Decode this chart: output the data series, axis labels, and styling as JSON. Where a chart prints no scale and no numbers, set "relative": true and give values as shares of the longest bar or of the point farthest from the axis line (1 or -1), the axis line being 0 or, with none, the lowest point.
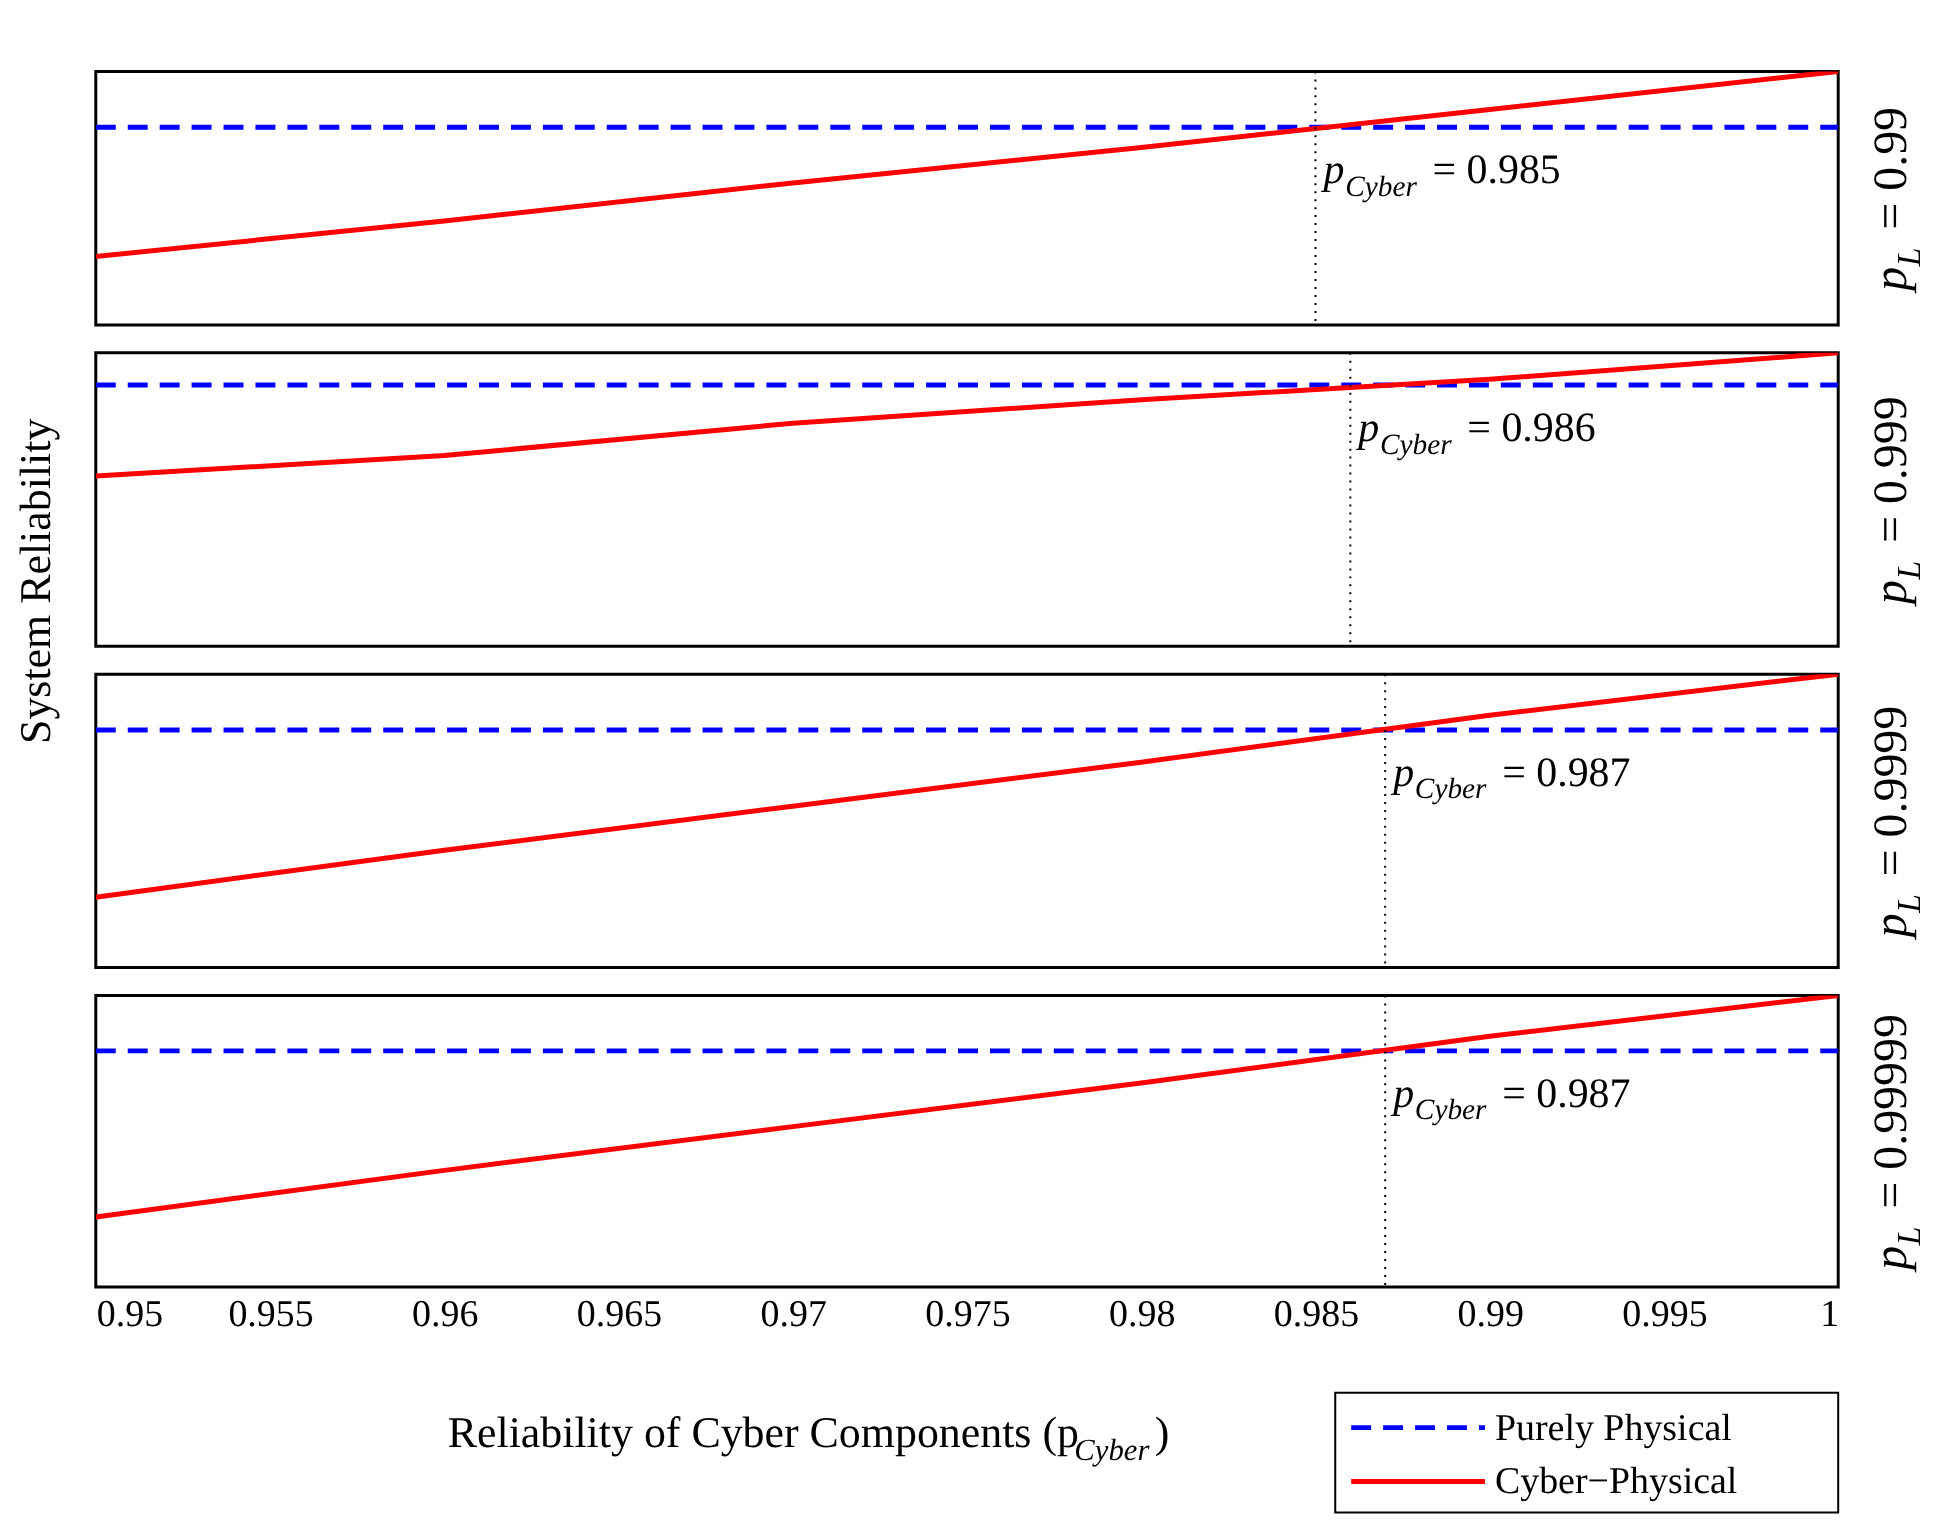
{
  "chart_data": [
    {
      "type": "line",
      "ylabel": "System Reliability",
      "y2label": "p$_{L}$ = 0.99",
      "relative": true,
      "tick_labels": false,
      "grid": false,
      "legend": false,
      "xlim": [
        0.95,
        1
      ],
      "xticks": [
        0.95,
        0.955,
        0.96,
        0.965,
        0.97,
        0.975,
        0.98,
        0.985,
        0.99,
        0.995,
        1
      ],
      "series": [
        {
          "color": "#0000ff",
          "line_style": "dashed",
          "x": [
            0.95,
            1
          ],
          "values": [
            0.78,
            0.78
          ]
        },
        {
          "color": "#ff0000",
          "line_style": "solid",
          "x": [
            0.95,
            0.96,
            0.97,
            0.98,
            0.99,
            1
          ],
          "values": [
            0.27,
            0.41,
            0.56,
            0.7,
            0.85,
            1.0
          ]
        }
      ],
      "ref_lines": [
        {
          "axis": "x",
          "value": 0.985,
          "label": "p$_{Cyber}$ = 0.985",
          "color": "#000000",
          "line_style": "dotted"
        }
      ]
    },
    {
      "type": "line",
      "y2label": "p$_{L}$ = 0.999",
      "relative": true,
      "tick_labels": false,
      "grid": false,
      "legend": false,
      "xlim": [
        0.95,
        1
      ],
      "xticks": [
        0.95,
        0.955,
        0.96,
        0.965,
        0.97,
        0.975,
        0.98,
        0.985,
        0.99,
        0.995,
        1
      ],
      "series": [
        {
          "color": "#0000ff",
          "line_style": "dashed",
          "x": [
            0.95,
            1
          ],
          "values": [
            0.89,
            0.89
          ]
        },
        {
          "color": "#ff0000",
          "line_style": "solid",
          "x": [
            0.95,
            0.96,
            0.97,
            0.98,
            0.99,
            1
          ],
          "values": [
            0.58,
            0.65,
            0.76,
            0.84,
            0.91,
            1.0
          ]
        }
      ],
      "ref_lines": [
        {
          "axis": "x",
          "value": 0.986,
          "label": "p$_{Cyber}$ = 0.986",
          "color": "#000000",
          "line_style": "dotted"
        }
      ]
    },
    {
      "type": "line",
      "y2label": "p$_{L}$ = 0.9999",
      "relative": true,
      "tick_labels": false,
      "grid": false,
      "legend": false,
      "xlim": [
        0.95,
        1
      ],
      "xticks": [
        0.95,
        0.955,
        0.96,
        0.965,
        0.97,
        0.975,
        0.98,
        0.985,
        0.99,
        0.995,
        1
      ],
      "series": [
        {
          "color": "#0000ff",
          "line_style": "dashed",
          "x": [
            0.95,
            1
          ],
          "values": [
            0.81,
            0.81
          ]
        },
        {
          "color": "#ff0000",
          "line_style": "solid",
          "x": [
            0.95,
            0.96,
            0.97,
            0.98,
            0.99,
            1
          ],
          "values": [
            0.24,
            0.4,
            0.55,
            0.7,
            0.86,
            1.0
          ]
        }
      ],
      "ref_lines": [
        {
          "axis": "x",
          "value": 0.987,
          "label": "p$_{Cyber}$ = 0.987",
          "color": "#000000",
          "line_style": "dotted"
        }
      ]
    },
    {
      "type": "line",
      "y2label": "p$_{L}$ = 0.99999",
      "xlabel": "Reliability of Cyber Components (p$_{Cyber}$)",
      "relative": true,
      "tick_labels": "x",
      "grid": false,
      "legend": "bottom right",
      "xlim": [
        0.95,
        1
      ],
      "xticks": [
        0.95,
        0.955,
        0.96,
        0.965,
        0.97,
        0.975,
        0.98,
        0.985,
        0.99,
        0.995,
        1
      ],
      "series": [
        {
          "name": "Purely Physical",
          "color": "#0000ff",
          "line_style": "dashed",
          "x": [
            0.95,
            1
          ],
          "values": [
            0.81,
            0.81
          ]
        },
        {
          "name": "Cyber−Physical",
          "color": "#ff0000",
          "line_style": "solid",
          "x": [
            0.95,
            0.96,
            0.97,
            0.98,
            0.99,
            1
          ],
          "values": [
            0.24,
            0.4,
            0.55,
            0.7,
            0.86,
            1.0
          ]
        }
      ],
      "ref_lines": [
        {
          "axis": "x",
          "value": 0.987,
          "label": "p$_{Cyber}$ = 0.987",
          "color": "#000000",
          "line_style": "dotted"
        }
      ]
    }
  ]
}
